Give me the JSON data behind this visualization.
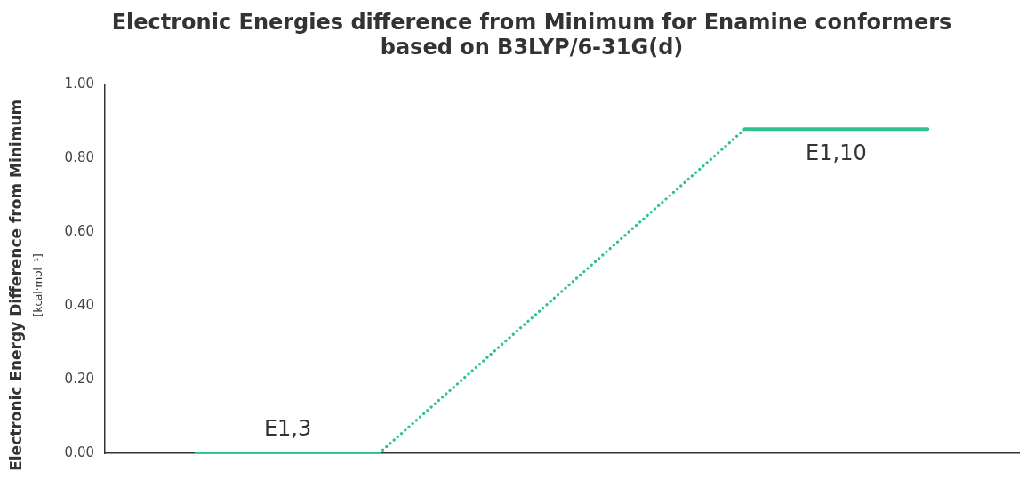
{
  "chart_data": {
    "type": "line",
    "title": "Electronic Energies difference from Minimum for Enamine conformers\nbased on B3LYP/6-31G(d)",
    "ylabel": "Electronic Energy Difference from Minimum\n[kcal·mol⁻¹]",
    "categories": [
      null,
      null,
      null,
      null,
      null
    ],
    "series": [
      {
        "name": "E1,3",
        "color": "#2ec28e",
        "values": [
          0,
          0,
          null,
          null,
          null
        ],
        "line_style": "solid"
      },
      {
        "color": "#2ec28e",
        "values": [
          null,
          0,
          0.44,
          0.88,
          null
        ],
        "line_style": "dotted"
      },
      {
        "name": "E1,10",
        "color": "#2ec28e",
        "values": [
          null,
          null,
          null,
          0.88,
          0.88
        ],
        "line_style": "solid"
      }
    ],
    "ylim": [
      0,
      1
    ],
    "yticks": [
      {
        "value": 0,
        "label": "0.00"
      },
      {
        "value": 0.2,
        "label": "0.20"
      },
      {
        "value": 0.4,
        "label": "0.40"
      },
      {
        "value": 0.6,
        "label": "0.60"
      },
      {
        "value": 0.8,
        "label": "0.80"
      },
      {
        "value": 1,
        "label": "1.00"
      }
    ],
    "tick_labels": "y",
    "grid": false,
    "legend": false,
    "marker": "none"
  }
}
